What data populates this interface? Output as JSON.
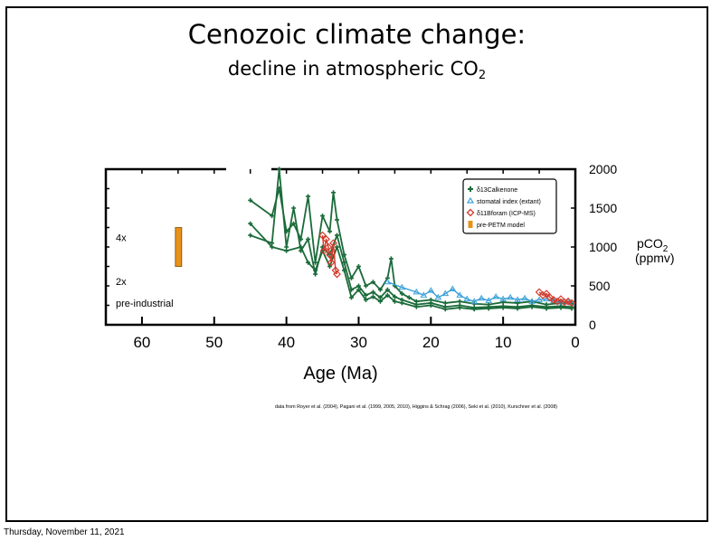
{
  "slide": {
    "title": "Cenozoic climate change:",
    "subtitle_prefix": "decline in atmospheric CO",
    "subtitle_subscript": "2",
    "footer_date": "Thursday, November 11, 2021"
  },
  "chart_data": {
    "type": "line",
    "xlabel": "Age (Ma)",
    "ylabel_main": "pCO",
    "ylabel_sub": "2",
    "ylabel_unit": "(ppmv)",
    "xlim": [
      65,
      0
    ],
    "ylim": [
      0,
      2000
    ],
    "x_ticks": [
      "60",
      "50",
      "40",
      "30",
      "20",
      "10",
      "0"
    ],
    "x_tick_values": [
      60,
      50,
      40,
      30,
      20,
      10,
      0
    ],
    "y_ticks": [
      "2000",
      "1500",
      "1000",
      "500",
      "0"
    ],
    "y_tick_values": [
      2000,
      1500,
      1000,
      500,
      0
    ],
    "left_labels": [
      "4x",
      "2x",
      "pre-industrial"
    ],
    "left_label_values": [
      1120,
      560,
      280
    ],
    "legend": {
      "position": "top-right",
      "entries": [
        {
          "marker": "cross",
          "color": "#1b6b3a",
          "label": "δ13Calkenone"
        },
        {
          "marker": "triangle",
          "color": "#3aa0d8",
          "label": "stomatal index (extant)"
        },
        {
          "marker": "diamond",
          "color": "#d23a2a",
          "label": "δ11Bforam (ICP-MS)"
        },
        {
          "marker": "bar",
          "color": "#e8921a",
          "label": "pre-PETM model"
        }
      ]
    },
    "credit": "data from Royer et al. (2004), Pagani et al. (1999, 2005, 2010), Higgins & Schrag (2006), Seki et al. (2010), Kurschner et al. (2008)",
    "series": [
      {
        "name": "δ13Calkenone",
        "color": "#1b6b3a",
        "x": [
          45,
          42,
          41,
          40,
          39,
          38,
          37,
          36,
          35,
          34,
          33.5,
          33,
          32,
          31,
          30,
          29,
          28,
          27,
          26,
          25.5,
          25,
          24,
          23,
          22,
          20,
          18,
          16,
          14,
          12,
          10,
          8,
          6,
          4,
          2,
          0.5
        ],
        "values": [
          1600,
          1400,
          1750,
          1200,
          1300,
          1100,
          1650,
          800,
          1400,
          1200,
          1700,
          1350,
          900,
          600,
          750,
          500,
          550,
          450,
          600,
          850,
          500,
          400,
          350,
          300,
          320,
          280,
          300,
          270,
          260,
          290,
          280,
          300,
          260,
          280,
          270
        ]
      },
      {
        "name": "δ13Calkenone",
        "color": "#1b6b3a",
        "x": [
          45,
          42,
          41,
          40,
          39,
          38,
          37,
          36,
          35,
          34,
          33,
          32,
          31,
          30,
          29,
          28,
          27,
          26,
          25,
          24,
          22,
          20,
          18,
          16,
          14,
          12,
          10,
          8,
          6,
          4,
          2,
          0.5
        ],
        "values": [
          1150,
          1050,
          2000,
          1000,
          1500,
          950,
          1100,
          650,
          1000,
          900,
          1150,
          800,
          450,
          500,
          380,
          420,
          350,
          450,
          360,
          320,
          260,
          280,
          230,
          250,
          220,
          230,
          240,
          230,
          250,
          230,
          240,
          230
        ]
      },
      {
        "name": "δ13Calkenone",
        "color": "#1b6b3a",
        "x": [
          45,
          42,
          40,
          38,
          37,
          36,
          35,
          34,
          33,
          32,
          31,
          30,
          29,
          28,
          27,
          26,
          25,
          24,
          22,
          20,
          18,
          16,
          14,
          12,
          10,
          8,
          6,
          4,
          2,
          0.5
        ],
        "values": [
          1300,
          1000,
          950,
          1000,
          800,
          700,
          950,
          750,
          1000,
          700,
          350,
          450,
          320,
          360,
          300,
          380,
          300,
          280,
          230,
          250,
          200,
          220,
          200,
          210,
          220,
          210,
          230,
          210,
          220,
          210
        ]
      },
      {
        "name": "stomatal index (extant)",
        "color": "#3aa0d8",
        "x": [
          26,
          24,
          22,
          21,
          20,
          19,
          18,
          17,
          16,
          15,
          14,
          13,
          12,
          11,
          10,
          9,
          8,
          7,
          6,
          5,
          4,
          3,
          2,
          1,
          0.5
        ],
        "values": [
          550,
          480,
          420,
          380,
          440,
          350,
          400,
          460,
          380,
          330,
          300,
          340,
          310,
          360,
          330,
          350,
          320,
          340,
          300,
          320,
          330,
          310,
          290,
          300,
          280
        ]
      },
      {
        "name": "δ11Bforam (ICP-MS)",
        "color": "#d23a2a",
        "x": [
          35,
          34.8,
          34.5,
          34.2,
          34,
          33.8,
          33.5,
          33.2,
          33
        ],
        "values": [
          1150,
          950,
          1100,
          1000,
          900,
          800,
          1050,
          700,
          650
        ]
      },
      {
        "name": "δ11Bforam (ICP-MS)",
        "color": "#d23a2a",
        "x": [
          5,
          4.5,
          4,
          3.5,
          3,
          2.5,
          2,
          1.5,
          1,
          0.5
        ],
        "values": [
          420,
          380,
          400,
          350,
          320,
          300,
          330,
          290,
          300,
          280
        ]
      }
    ],
    "pre_petm_bar": {
      "x": 55,
      "low": 750,
      "high": 1250,
      "color": "#e8921a"
    }
  }
}
